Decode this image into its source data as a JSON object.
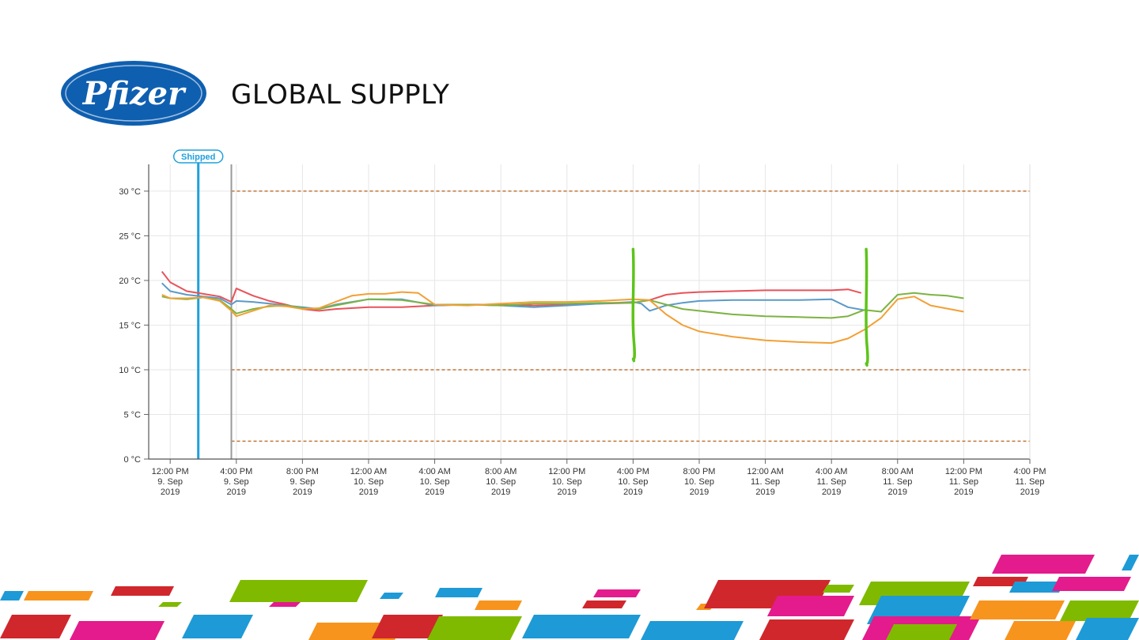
{
  "header": {
    "logo_text": "Pfizer",
    "title": "GLOBAL SUPPLY",
    "brand_color": "#0f5fb0"
  },
  "chart_data": {
    "type": "line",
    "title": "",
    "xlabel": "",
    "ylabel": "",
    "ylim": [
      0,
      33
    ],
    "yticks": [
      0,
      5,
      10,
      15,
      20,
      25,
      30
    ],
    "ytick_labels": [
      "0 °C",
      "5 °C",
      "10 °C",
      "15 °C",
      "20 °C",
      "25 °C",
      "30 °C"
    ],
    "x_unit": "hours since 12:00 PM 9 Sep 2019",
    "xlim": [
      -1.3,
      52
    ],
    "xticks": [
      {
        "x": 0,
        "l1": "12:00 PM",
        "l2": "9. Sep",
        "l3": "2019"
      },
      {
        "x": 4,
        "l1": "4:00 PM",
        "l2": "9. Sep",
        "l3": "2019"
      },
      {
        "x": 8,
        "l1": "8:00 PM",
        "l2": "9. Sep",
        "l3": "2019"
      },
      {
        "x": 12,
        "l1": "12:00 AM",
        "l2": "10. Sep",
        "l3": "2019"
      },
      {
        "x": 16,
        "l1": "4:00 AM",
        "l2": "10. Sep",
        "l3": "2019"
      },
      {
        "x": 20,
        "l1": "8:00 AM",
        "l2": "10. Sep",
        "l3": "2019"
      },
      {
        "x": 24,
        "l1": "12:00 PM",
        "l2": "10. Sep",
        "l3": "2019"
      },
      {
        "x": 28,
        "l1": "4:00 PM",
        "l2": "10. Sep",
        "l3": "2019"
      },
      {
        "x": 32,
        "l1": "8:00 PM",
        "l2": "10. Sep",
        "l3": "2019"
      },
      {
        "x": 36,
        "l1": "12:00 AM",
        "l2": "11. Sep",
        "l3": "2019"
      },
      {
        "x": 40,
        "l1": "4:00 AM",
        "l2": "11. Sep",
        "l3": "2019"
      },
      {
        "x": 44,
        "l1": "8:00 AM",
        "l2": "11. Sep",
        "l3": "2019"
      },
      {
        "x": 48,
        "l1": "12:00 PM",
        "l2": "11. Sep",
        "l3": "2019"
      },
      {
        "x": 52,
        "l1": "4:00 PM",
        "l2": "11. Sep",
        "l3": "2019"
      }
    ],
    "grid": true,
    "threshold_lines": [
      {
        "y": 30,
        "color": "#c0773a"
      },
      {
        "y": 10,
        "color": "#c0773a"
      },
      {
        "y": 2,
        "color": "#c0773a"
      }
    ],
    "annotation": {
      "label": "Shipped",
      "x": 1.7,
      "color": "#1fa0dc"
    },
    "start_marker": {
      "x": 3.7,
      "color": "#9a9a9a"
    },
    "markup_lines": [
      {
        "x": 28,
        "y_from": 11,
        "y_to": 23.5,
        "color": "#5ec41a"
      },
      {
        "x": 42.1,
        "y_from": 10.5,
        "y_to": 23.5,
        "color": "#5ec41a"
      }
    ],
    "series": [
      {
        "color": "#e8525a",
        "x": [
          -0.5,
          0,
          1,
          2,
          3,
          3.7,
          4,
          5,
          6,
          7,
          8,
          9,
          10,
          12,
          14,
          16,
          18,
          20,
          22,
          24,
          26,
          28,
          29,
          30,
          31,
          32,
          34,
          36,
          38,
          40,
          41,
          41.8
        ],
        "y": [
          21,
          19.8,
          18.8,
          18.5,
          18.2,
          17.6,
          19.1,
          18.3,
          17.7,
          17.3,
          16.8,
          16.6,
          16.8,
          17,
          17,
          17.2,
          17.3,
          17.3,
          17.2,
          17.3,
          17.4,
          17.5,
          17.8,
          18.4,
          18.6,
          18.7,
          18.8,
          18.9,
          18.9,
          18.9,
          19,
          18.6
        ]
      },
      {
        "color": "#5a9ac8",
        "x": [
          -0.5,
          0,
          1,
          2,
          3,
          3.7,
          4,
          5,
          6,
          7,
          8,
          9,
          10,
          12,
          14,
          16,
          18,
          20,
          22,
          24,
          26,
          28,
          28.5,
          29,
          30,
          31,
          32,
          34,
          36,
          38,
          40,
          41,
          42.2
        ],
        "y": [
          19.7,
          18.8,
          18.4,
          18.2,
          18,
          17.3,
          17.7,
          17.6,
          17.4,
          17.2,
          17,
          16.8,
          17.3,
          17.9,
          17.9,
          17.2,
          17.3,
          17.2,
          17,
          17.2,
          17.4,
          17.6,
          17.4,
          16.6,
          17.2,
          17.5,
          17.7,
          17.8,
          17.8,
          17.8,
          17.9,
          17,
          16.6
        ]
      },
      {
        "color": "#7cb342",
        "x": [
          -0.5,
          0,
          1,
          2,
          3,
          3.7,
          4,
          5,
          6,
          7,
          8,
          9,
          10,
          12,
          14,
          16,
          18,
          20,
          22,
          24,
          26,
          28,
          29,
          30,
          31,
          32,
          34,
          36,
          38,
          40,
          41,
          42,
          43,
          44,
          45,
          46,
          47,
          48
        ],
        "y": [
          18.2,
          18,
          17.9,
          18.1,
          17.8,
          16.8,
          16.3,
          16.8,
          17.1,
          17.2,
          16.9,
          16.8,
          17.2,
          17.9,
          17.8,
          17.3,
          17.3,
          17.2,
          17.4,
          17.4,
          17.5,
          17.5,
          17.8,
          17.3,
          16.8,
          16.6,
          16.2,
          16,
          15.9,
          15.8,
          16,
          16.7,
          16.5,
          18.4,
          18.6,
          18.4,
          18.3,
          18
        ]
      },
      {
        "color": "#f2a035",
        "x": [
          -0.5,
          0,
          1,
          2,
          3,
          3.7,
          4,
          5,
          6,
          7,
          8,
          9,
          10,
          11,
          12,
          13,
          14,
          15,
          16,
          18,
          20,
          22,
          24,
          26,
          28,
          29,
          30,
          31,
          32,
          34,
          36,
          38,
          40,
          41,
          42,
          43,
          44,
          45,
          46,
          48
        ],
        "y": [
          18.4,
          18,
          18,
          18.1,
          17.7,
          16.6,
          16,
          16.6,
          17.2,
          17.1,
          16.8,
          16.9,
          17.6,
          18.3,
          18.5,
          18.5,
          18.7,
          18.6,
          17.3,
          17.2,
          17.4,
          17.6,
          17.6,
          17.7,
          17.9,
          17.8,
          16.2,
          15,
          14.3,
          13.7,
          13.3,
          13.1,
          13,
          13.5,
          14.5,
          15.8,
          17.9,
          18.2,
          17.2,
          16.5
        ]
      }
    ]
  },
  "decor": {
    "colors": [
      "#e31b8c",
      "#1e9ad6",
      "#7fba00",
      "#f7941d",
      "#d0272c"
    ]
  }
}
